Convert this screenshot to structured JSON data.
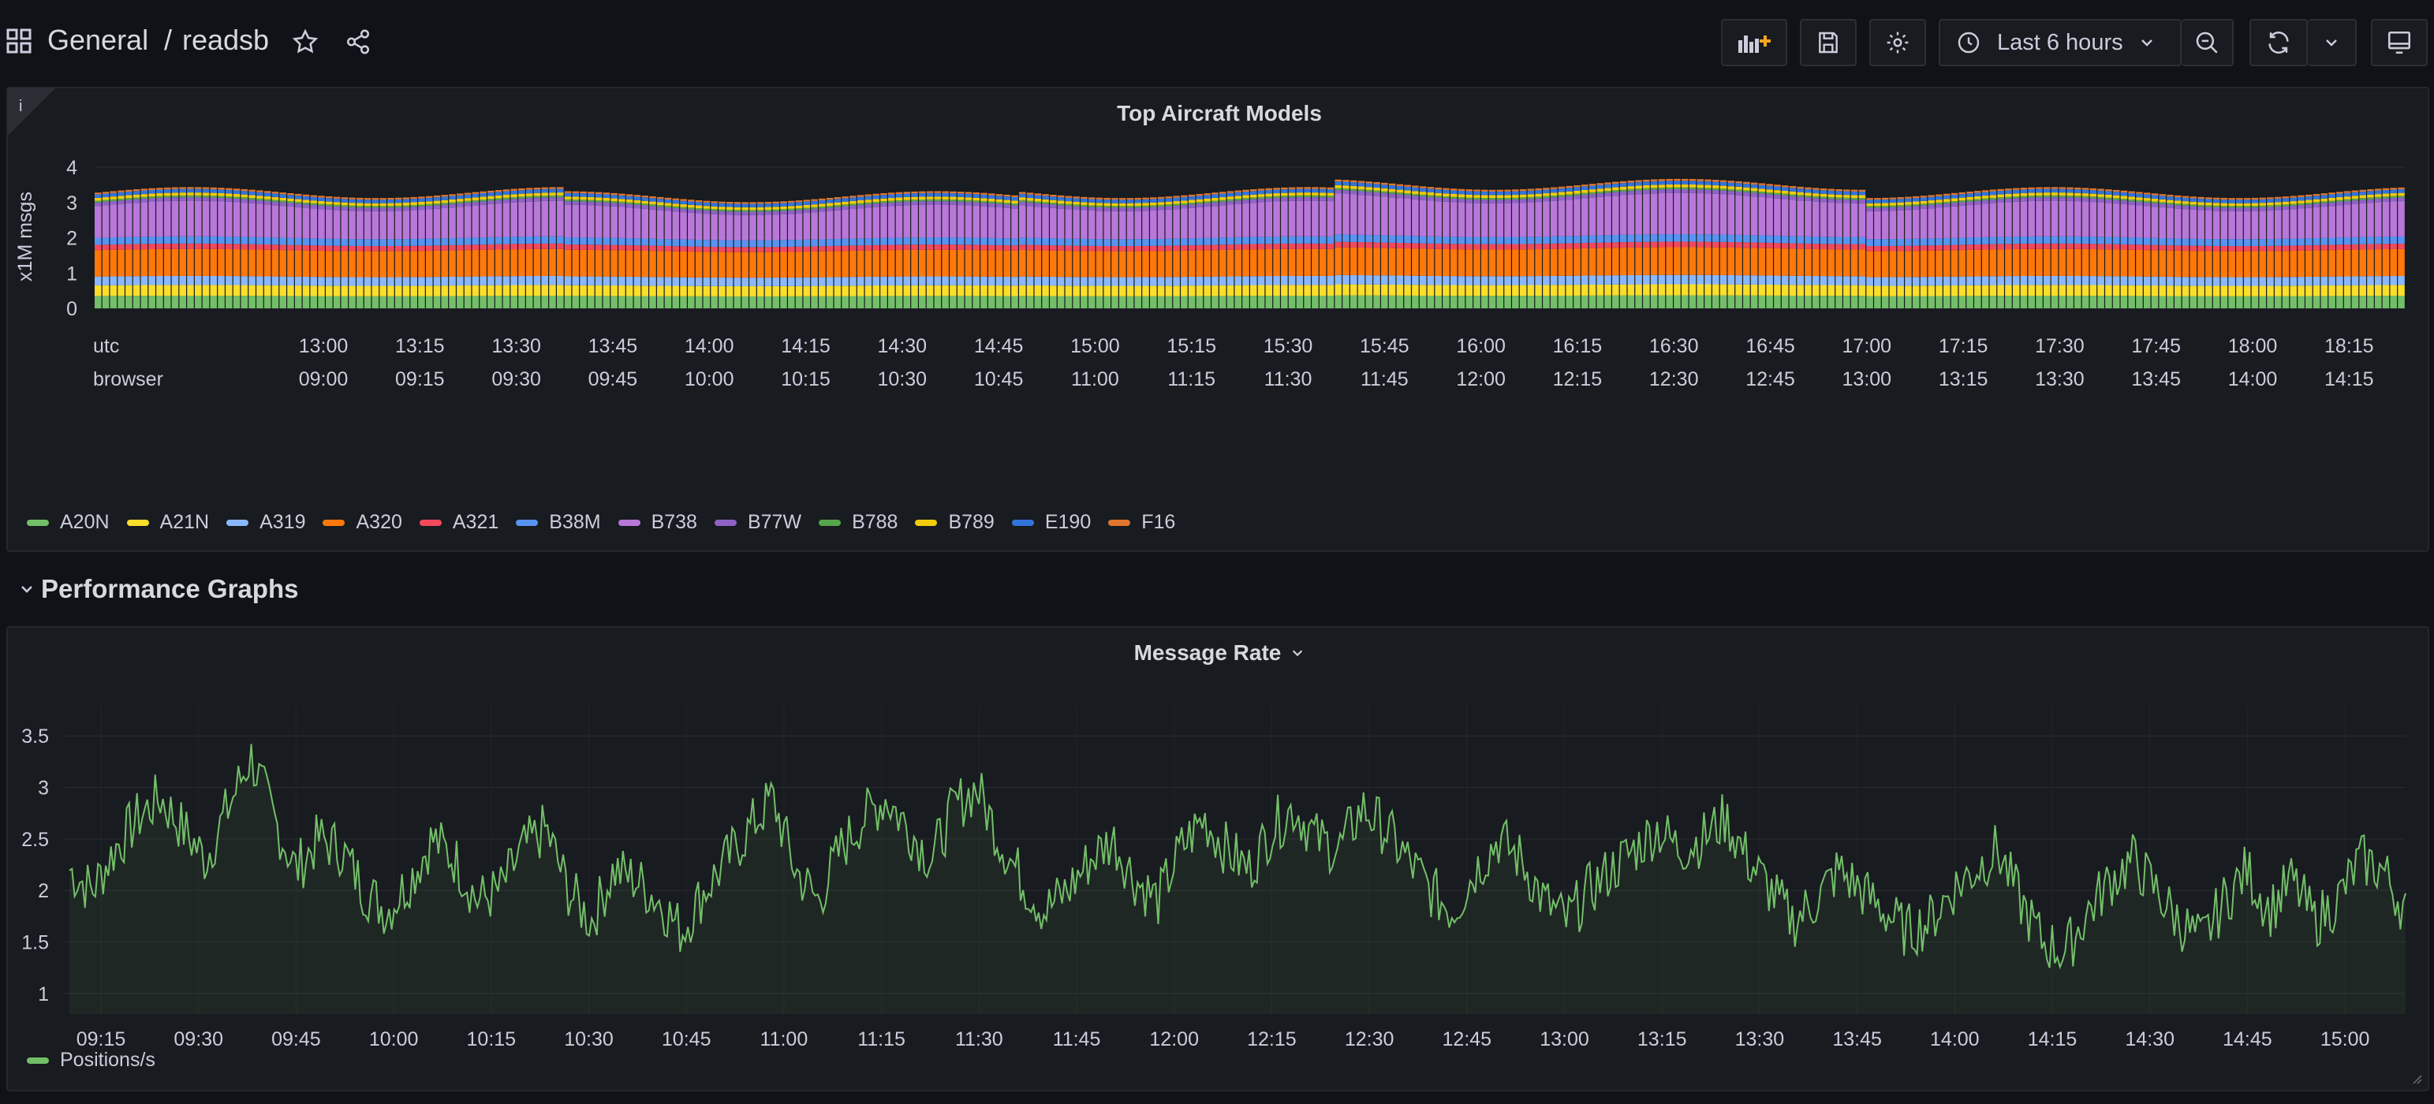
{
  "header": {
    "breadcrumb_folder": "General",
    "breadcrumb_sep": "/",
    "breadcrumb_dashboard": "readsb",
    "time_range": "Last 6 hours",
    "icons": {
      "apps": "grid-icon",
      "star": "star-icon",
      "share": "share-icon",
      "add_panel": "add-panel-icon",
      "save": "save-icon",
      "settings": "gear-icon",
      "clock": "clock-icon",
      "zoom_out": "zoom-out-icon",
      "refresh": "refresh-icon",
      "refresh_dropdown": "chevron-down-icon",
      "tv_mode": "monitor-icon"
    }
  },
  "panel1": {
    "title": "Top Aircraft Models",
    "info_icon": "i",
    "legend": [
      {
        "name": "A20N",
        "color": "#73bf69"
      },
      {
        "name": "A21N",
        "color": "#fade2a"
      },
      {
        "name": "A319",
        "color": "#8ab8ff"
      },
      {
        "name": "A320",
        "color": "#ff780a"
      },
      {
        "name": "A321",
        "color": "#f2495c"
      },
      {
        "name": "B38M",
        "color": "#5794f2"
      },
      {
        "name": "B738",
        "color": "#b877d9"
      },
      {
        "name": "B77W",
        "color": "#8f62c7"
      },
      {
        "name": "B788",
        "color": "#56a64b"
      },
      {
        "name": "B789",
        "color": "#f2cc0c"
      },
      {
        "name": "E190",
        "color": "#3274d9"
      },
      {
        "name": "F16",
        "color": "#e0752d"
      }
    ]
  },
  "row": {
    "title": "Performance Graphs",
    "collapse_icon": "chevron-down-icon"
  },
  "panel2": {
    "title": "Message Rate",
    "menu_icon": "chevron-down-icon",
    "legend": [
      {
        "name": "Positions/s",
        "color": "#73bf69"
      }
    ]
  },
  "chart_data": [
    {
      "type": "bar",
      "title": "Top Aircraft Models",
      "ylabel": "x1M msgs",
      "xlabel": "",
      "ylim": [
        0,
        4
      ],
      "yticks": [
        0,
        1,
        2,
        3,
        4
      ],
      "x_axis_rows": [
        {
          "label": "utc",
          "ticks": [
            "13:00",
            "13:15",
            "13:30",
            "13:45",
            "14:00",
            "14:15",
            "14:30",
            "14:45",
            "15:00",
            "15:15",
            "15:30",
            "15:45",
            "16:00",
            "16:15",
            "16:30",
            "16:45",
            "17:00",
            "17:15",
            "17:30",
            "17:45",
            "18:00",
            "18:15"
          ]
        },
        {
          "label": "browser",
          "ticks": [
            "09:00",
            "09:15",
            "09:30",
            "09:45",
            "10:00",
            "10:15",
            "10:30",
            "10:45",
            "11:00",
            "11:15",
            "11:30",
            "11:45",
            "12:00",
            "12:15",
            "12:30",
            "12:45",
            "13:00",
            "13:15",
            "13:30",
            "13:45",
            "14:00",
            "14:15"
          ]
        }
      ],
      "stacked": true,
      "series": [
        {
          "name": "A20N",
          "value": 0.35
        },
        {
          "name": "A21N",
          "value": 0.3
        },
        {
          "name": "A319",
          "value": 0.25
        },
        {
          "name": "A320",
          "value": 0.75
        },
        {
          "name": "A321",
          "value": 0.15
        },
        {
          "name": "B38M",
          "value": 0.2
        },
        {
          "name": "B738",
          "value": 0.9
        },
        {
          "name": "B77W",
          "value": 0.1
        },
        {
          "name": "B788",
          "value": 0.05
        },
        {
          "name": "B789",
          "value": 0.08
        },
        {
          "name": "E190",
          "value": 0.1
        },
        {
          "name": "F16",
          "value": 0.05
        }
      ],
      "total_approx": [
        3.2,
        3.1,
        3.15,
        3.2,
        3.25,
        3.2,
        3.2,
        3.2
      ]
    },
    {
      "type": "area",
      "title": "Message Rate",
      "ylabel": "",
      "xlabel": "",
      "ylim": [
        0.8,
        3.8
      ],
      "yticks": [
        1,
        1.5,
        2,
        2.5,
        3,
        3.5
      ],
      "ytick_labels": [
        "1",
        "1.5",
        "2",
        "2.5",
        "3",
        "3.5"
      ],
      "xticks": [
        "09:15",
        "09:30",
        "09:45",
        "10:00",
        "10:15",
        "10:30",
        "10:45",
        "11:00",
        "11:15",
        "11:30",
        "11:45",
        "12:00",
        "12:15",
        "12:30",
        "12:45",
        "13:00",
        "13:15",
        "13:30",
        "13:45",
        "14:00",
        "14:15",
        "14:30",
        "14:45",
        "15:00"
      ],
      "series": [
        {
          "name": "Positions/s",
          "x_start": "09:05",
          "x_end": "15:10",
          "values": [
            2.2,
            2.0,
            2.4,
            2.7,
            2.9,
            2.6,
            2.3,
            2.8,
            3.3,
            2.7,
            2.2,
            2.5,
            2.4,
            2.0,
            1.8,
            2.1,
            2.5,
            2.3,
            1.9,
            2.0,
            2.4,
            2.6,
            2.0,
            1.7,
            2.2,
            2.1,
            1.9,
            1.6,
            2.0,
            2.3,
            2.6,
            2.9,
            2.2,
            1.9,
            2.4,
            2.7,
            2.9,
            2.6,
            2.3,
            2.8,
            3.0,
            2.5,
            2.1,
            1.8,
            2.0,
            2.3,
            2.5,
            2.1,
            1.9,
            2.4,
            2.7,
            2.4,
            2.2,
            2.6,
            2.8,
            2.5,
            2.4,
            2.8,
            2.6,
            2.3,
            2.0,
            1.8,
            2.2,
            2.5,
            2.3,
            1.9,
            1.7,
            2.0,
            2.2,
            2.4,
            2.6,
            2.4,
            2.5,
            2.7,
            2.3,
            2.0,
            1.7,
            1.9,
            2.2,
            2.0,
            1.8,
            1.6,
            1.7,
            2.0,
            2.2,
            2.4,
            1.9,
            1.5,
            1.4,
            1.8,
            2.1,
            2.3,
            2.0,
            1.7,
            1.5,
            1.9,
            2.2,
            1.8,
            2.1,
            1.7,
            1.9,
            2.3,
            2.2,
            1.8
          ]
        }
      ]
    }
  ]
}
